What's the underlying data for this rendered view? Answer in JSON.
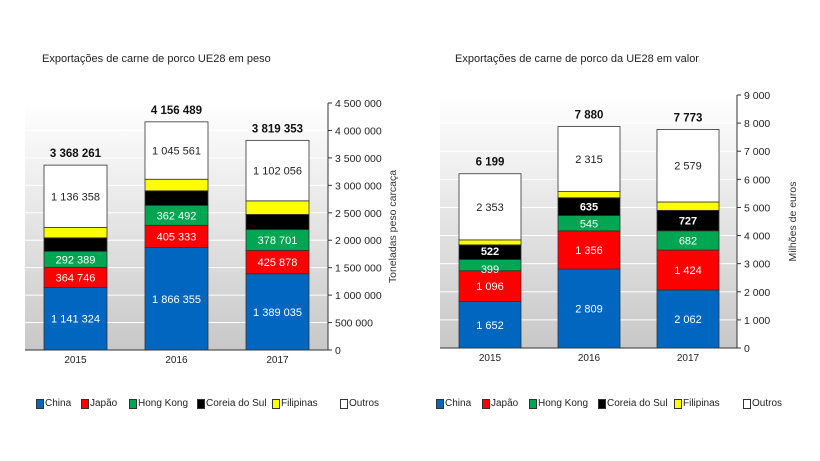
{
  "chart_data": [
    {
      "type": "bar",
      "stacked": true,
      "title": "Exportações de carne de porco UE28 em peso",
      "ylabel": "Toneladas peso carcaça",
      "ylim": [
        0,
        4500000
      ],
      "yticks": [
        "0",
        "500 000",
        "1 000 000",
        "1 500 000",
        "2 000 000",
        "2 500 000",
        "3 000 000",
        "3 500 000",
        "4 000 000",
        "4 500 000"
      ],
      "categories": [
        "2015",
        "2016",
        "2017"
      ],
      "grid": true,
      "legend_position": "bottom",
      "series": [
        {
          "name": "China",
          "color": "#0066bf",
          "values": [
            1141324,
            1866355,
            1389035
          ],
          "labels": [
            "1 141 324",
            "1 866 355",
            "1 389 035"
          ]
        },
        {
          "name": "Japão",
          "color": "#ff0000",
          "values": [
            364746,
            405333,
            425878
          ],
          "labels": [
            "364 746",
            "405 333",
            "425 878"
          ]
        },
        {
          "name": "Hong Kong",
          "color": "#00a651",
          "values": [
            292389,
            362492,
            378701
          ],
          "labels": [
            "292 389",
            "362 492",
            "378 701"
          ]
        },
        {
          "name": "Coreia do Sul",
          "color": "#000000",
          "values": [
            245000,
            266000,
            276000
          ],
          "labels": [
            "",
            "",
            ""
          ]
        },
        {
          "name": "Filipinas",
          "color": "#ffff00",
          "values": [
            188444,
            210748,
            247683
          ],
          "labels": [
            "",
            "",
            ""
          ]
        },
        {
          "name": "Outros",
          "color": "#ffffff",
          "values": [
            1136358,
            1045561,
            1102056
          ],
          "labels": [
            "1 136 358",
            "1 045 561",
            "1 102 056"
          ]
        }
      ],
      "totals": [
        "3 368 261",
        "4 156 489",
        "3 819 353"
      ]
    },
    {
      "type": "bar",
      "stacked": true,
      "title": "Exportações de carne de porco da UE28 em valor",
      "ylabel": "Milhões de euros",
      "ylim": [
        0,
        9000
      ],
      "yticks": [
        "0",
        "1 000",
        "2 000",
        "3 000",
        "4 000",
        "5 000",
        "6 000",
        "7 000",
        "8 000",
        "9 000"
      ],
      "categories": [
        "2015",
        "2016",
        "2017"
      ],
      "grid": true,
      "legend_position": "bottom",
      "series": [
        {
          "name": "China",
          "color": "#0066bf",
          "values": [
            1652,
            2809,
            2062
          ],
          "labels": [
            "1 652",
            "2 809",
            "2 062"
          ]
        },
        {
          "name": "Japão",
          "color": "#ff0000",
          "values": [
            1096,
            1356,
            1424
          ],
          "labels": [
            "1 096",
            "1 356",
            "1 424"
          ]
        },
        {
          "name": "Hong Kong",
          "color": "#00a651",
          "values": [
            399,
            545,
            682
          ],
          "labels": [
            "399",
            "545",
            "682"
          ]
        },
        {
          "name": "Coreia do Sul",
          "color": "#000000",
          "values": [
            522,
            635,
            727
          ],
          "labels": [
            "522",
            "635",
            "727"
          ]
        },
        {
          "name": "Filipinas",
          "color": "#ffff00",
          "values": [
            177,
            220,
            299
          ],
          "labels": [
            "",
            "",
            ""
          ]
        },
        {
          "name": "Outros",
          "color": "#ffffff",
          "values": [
            2353,
            2315,
            2579
          ],
          "labels": [
            "2 353",
            "2 315",
            "2 579"
          ]
        }
      ],
      "totals": [
        "6 199",
        "7 880",
        "7 773"
      ]
    }
  ]
}
